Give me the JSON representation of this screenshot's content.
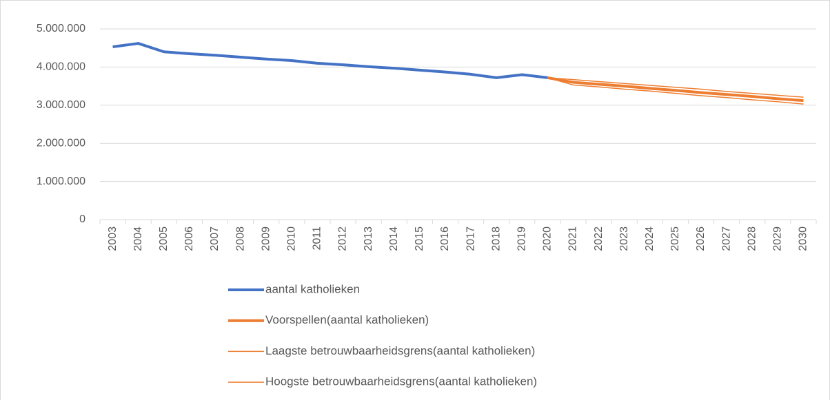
{
  "chart_data": {
    "type": "line",
    "categories": [
      "2003",
      "2004",
      "2005",
      "2006",
      "2007",
      "2008",
      "2009",
      "2010",
      "2011",
      "2012",
      "2013",
      "2014",
      "2015",
      "2016",
      "2017",
      "2018",
      "2019",
      "2020",
      "2021",
      "2022",
      "2023",
      "2024",
      "2025",
      "2026",
      "2027",
      "2028",
      "2029",
      "2030"
    ],
    "series": [
      {
        "name": "aantal katholieken",
        "color": "#4472c4",
        "line_width": 4,
        "values": [
          4530000,
          4620000,
          4400000,
          4350000,
          4310000,
          4260000,
          4210000,
          4170000,
          4100000,
          4060000,
          4010000,
          3970000,
          3920000,
          3870000,
          3810000,
          3720000,
          3800000,
          3720000,
          null,
          null,
          null,
          null,
          null,
          null,
          null,
          null,
          null,
          null
        ]
      },
      {
        "name": "Voorspellen(aantal katholieken)",
        "color": "#ed7d31",
        "line_width": 4,
        "values": [
          null,
          null,
          null,
          null,
          null,
          null,
          null,
          null,
          null,
          null,
          null,
          null,
          null,
          null,
          null,
          null,
          null,
          3720000,
          3600000,
          3550000,
          3500000,
          3440000,
          3390000,
          3330000,
          3280000,
          3230000,
          3170000,
          3120000
        ]
      },
      {
        "name": "Laagste betrouwbaarheidsgrens(aantal katholieken)",
        "color": "#ed7d31",
        "line_width": 1.5,
        "values": [
          null,
          null,
          null,
          null,
          null,
          null,
          null,
          null,
          null,
          null,
          null,
          null,
          null,
          null,
          null,
          null,
          null,
          3720000,
          3530000,
          3480000,
          3420000,
          3370000,
          3310000,
          3250000,
          3200000,
          3140000,
          3090000,
          3030000
        ]
      },
      {
        "name": "Hoogste betrouwbaarheidsgrens(aantal katholieken)",
        "color": "#ed7d31",
        "line_width": 1.5,
        "values": [
          null,
          null,
          null,
          null,
          null,
          null,
          null,
          null,
          null,
          null,
          null,
          null,
          null,
          null,
          null,
          null,
          null,
          3720000,
          3670000,
          3620000,
          3570000,
          3520000,
          3470000,
          3420000,
          3360000,
          3310000,
          3260000,
          3210000
        ]
      }
    ],
    "ylim": [
      0,
      5000000
    ],
    "yticks": [
      0,
      {
        "value": 1000000,
        "label": "1.000.000"
      },
      {
        "value": 2000000,
        "label": "2.000.000"
      },
      {
        "value": 3000000,
        "label": "3.000.000"
      },
      {
        "value": 4000000,
        "label": "4.000.000"
      },
      {
        "value": 5000000,
        "label": "5.000.000"
      }
    ],
    "grid": true,
    "legend": "bottom"
  }
}
